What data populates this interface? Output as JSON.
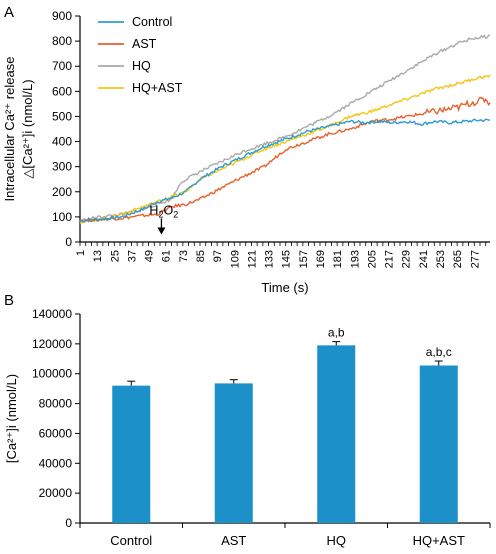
{
  "chart_data": [
    {
      "panel_label": "A",
      "type": "line",
      "ylabel_line1": "Intracellular Ca²⁺ release",
      "ylabel_line2": "△[Ca²⁺]i (nmol/L)",
      "xlabel": "Time (s)",
      "ylim": [
        0,
        900
      ],
      "yticks": [
        0,
        100,
        200,
        300,
        400,
        500,
        600,
        700,
        800,
        900
      ],
      "xlim": [
        1,
        288
      ],
      "xticks": [
        1,
        13,
        25,
        37,
        49,
        61,
        73,
        85,
        97,
        109,
        121,
        133,
        145,
        157,
        169,
        181,
        193,
        205,
        217,
        229,
        241,
        253,
        265,
        277
      ],
      "legend_position": "top-left",
      "annotation": {
        "text_main": "H",
        "text_sub": "2",
        "text_main2": "O",
        "text_sub2": "2",
        "x": 58,
        "y_start": 150,
        "y_end": 30
      },
      "series": [
        {
          "name": "Control",
          "color": "#2E9BD0",
          "x": [
            1,
            15,
            30,
            45,
            55,
            65,
            75,
            85,
            100,
            115,
            130,
            145,
            160,
            175,
            190,
            200,
            210,
            220,
            230,
            240,
            250,
            260,
            270,
            280,
            288
          ],
          "values": [
            85,
            90,
            100,
            130,
            160,
            175,
            200,
            250,
            300,
            340,
            380,
            410,
            440,
            460,
            480,
            475,
            480,
            475,
            480,
            470,
            480,
            475,
            480,
            485,
            485
          ]
        },
        {
          "name": "AST",
          "color": "#E8612C",
          "x": [
            1,
            15,
            30,
            45,
            55,
            65,
            75,
            85,
            100,
            115,
            130,
            145,
            160,
            175,
            190,
            205,
            220,
            235,
            250,
            265,
            275,
            280,
            285,
            288
          ],
          "values": [
            85,
            90,
            95,
            105,
            110,
            140,
            150,
            170,
            215,
            260,
            300,
            370,
            400,
            430,
            450,
            480,
            490,
            505,
            520,
            535,
            555,
            560,
            570,
            550
          ]
        },
        {
          "name": "HQ",
          "color": "#AAAAAA",
          "x": [
            1,
            15,
            30,
            45,
            55,
            65,
            72,
            85,
            100,
            115,
            130,
            145,
            160,
            175,
            190,
            205,
            220,
            235,
            250,
            265,
            275,
            288
          ],
          "values": [
            85,
            100,
            110,
            130,
            150,
            170,
            240,
            280,
            320,
            360,
            390,
            420,
            460,
            500,
            550,
            600,
            650,
            700,
            750,
            790,
            810,
            820
          ]
        },
        {
          "name": "HQ+AST",
          "color": "#F5C518",
          "x": [
            1,
            15,
            30,
            45,
            55,
            65,
            75,
            85,
            100,
            115,
            130,
            145,
            160,
            175,
            190,
            205,
            220,
            235,
            250,
            265,
            280,
            288
          ],
          "values": [
            80,
            90,
            110,
            140,
            160,
            180,
            200,
            250,
            290,
            330,
            370,
            400,
            430,
            460,
            500,
            520,
            550,
            580,
            610,
            630,
            655,
            660
          ]
        }
      ]
    },
    {
      "panel_label": "B",
      "type": "bar",
      "ylabel": "[Ca²⁺]i (nmol/L)",
      "ylim": [
        0,
        140000
      ],
      "yticks": [
        0,
        20000,
        40000,
        60000,
        80000,
        100000,
        120000,
        140000
      ],
      "categories": [
        "Control",
        "AST",
        "HQ",
        "HQ+AST"
      ],
      "values": [
        92000,
        93500,
        119000,
        105500
      ],
      "errors": [
        3000,
        2500,
        2500,
        3000
      ],
      "annotations": [
        "",
        "",
        "a,b",
        "a,b,c"
      ],
      "color": "#1C90C8"
    }
  ]
}
